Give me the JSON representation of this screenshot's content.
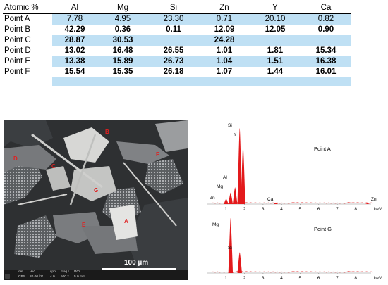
{
  "table": {
    "header": [
      "Atomic %",
      "Al",
      "Mg",
      "Si",
      "Zn",
      "Y",
      "Ca"
    ],
    "rows": [
      {
        "name": "Point A",
        "cells": [
          "7.78",
          "4.95",
          "23.30",
          "0.71",
          "20.10",
          "0.82"
        ],
        "bold": false
      },
      {
        "name": "Point B",
        "cells": [
          "42.29",
          "0.36",
          "0.11",
          "12.09",
          "12.05",
          "0.90"
        ],
        "bold": true
      },
      {
        "name": "Point C",
        "cells": [
          "28.87",
          "30.53",
          "",
          "24.28",
          "",
          ""
        ],
        "bold": true
      },
      {
        "name": "Point D",
        "cells": [
          "13.02",
          "16.48",
          "26.55",
          "1.01",
          "1.81",
          "15.34"
        ],
        "bold": true
      },
      {
        "name": "Point E",
        "cells": [
          "13.38",
          "15.89",
          "26.73",
          "1.04",
          "1.51",
          "16.38"
        ],
        "bold": true
      },
      {
        "name": "Point F",
        "cells": [
          "15.54",
          "15.35",
          "26.18",
          "1.07",
          "1.44",
          "16.01"
        ],
        "bold": true
      }
    ]
  },
  "sem": {
    "point_labels": [
      "A",
      "B",
      "C",
      "D",
      "E",
      "F",
      "G"
    ],
    "scale_label": "100 µm",
    "info": {
      "det": "det",
      "det_val": "CBS",
      "hv": "HV",
      "hv_val": "20.00 kV",
      "spot": "spot",
      "spot_val": "4.0",
      "mag": "mag ☐",
      "mag_val": "500 x",
      "wd": "WD",
      "wd_val": "5.0 mm"
    }
  },
  "spectra": {
    "top": {
      "point": "Point A",
      "peaks": [
        {
          "el": "Zn",
          "e": 1.01,
          "h": 0.07
        },
        {
          "el": "Mg",
          "e": 1.25,
          "h": 0.15
        },
        {
          "el": "Al",
          "e": 1.49,
          "h": 0.22
        },
        {
          "el": "Si",
          "e": 1.74,
          "h": 1.0
        },
        {
          "el": "Y",
          "e": 1.92,
          "h": 0.78
        },
        {
          "el": "Ca",
          "e": 3.69,
          "h": 0.02
        },
        {
          "el": "Zn",
          "e": 8.63,
          "h": 0.01
        }
      ]
    },
    "bottom": {
      "point": "Point G",
      "peaks": [
        {
          "el": "Mg",
          "e": 1.25,
          "h": 1.0
        },
        {
          "el": "Si",
          "e": 1.74,
          "h": 0.38
        }
      ]
    },
    "ticks": [
      "1",
      "2",
      "3",
      "4",
      "5",
      "6",
      "7",
      "8"
    ],
    "unit": "keV",
    "colors": {
      "spectrum": "#e31a1c"
    }
  }
}
